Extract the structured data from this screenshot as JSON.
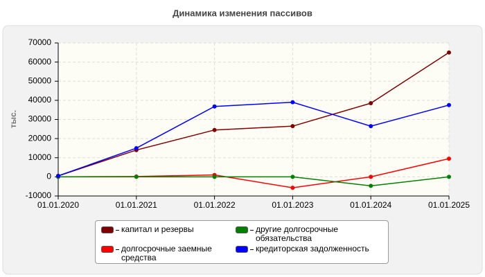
{
  "chart_data": {
    "type": "line",
    "title": "Динамика изменения пассивов",
    "y_label": "тыс.",
    "categories": [
      "01.01.2020",
      "01.01.2021",
      "01.01.2022",
      "01.01.2023",
      "01.01.2024",
      "01.01.2025"
    ],
    "series": [
      {
        "name": "капитал и резервы",
        "color": "#800000",
        "values": [
          500,
          14000,
          24500,
          26500,
          38500,
          65000
        ]
      },
      {
        "name": "долгосрочные заемные средства",
        "color": "#ff0000",
        "values": [
          0,
          200,
          1000,
          -5700,
          0,
          9500
        ]
      },
      {
        "name": "другие долгосрочные обязательства",
        "color": "#008000",
        "values": [
          0,
          0,
          0,
          0,
          -4700,
          0
        ]
      },
      {
        "name": "кредиторская задолженность",
        "color": "#0000ff",
        "values": [
          500,
          15000,
          36800,
          39000,
          26500,
          37500
        ]
      }
    ],
    "ylim": [
      -10000,
      70000
    ],
    "yticks": [
      -10000,
      0,
      10000,
      20000,
      30000,
      40000,
      50000,
      60000,
      70000
    ],
    "grid": true
  }
}
